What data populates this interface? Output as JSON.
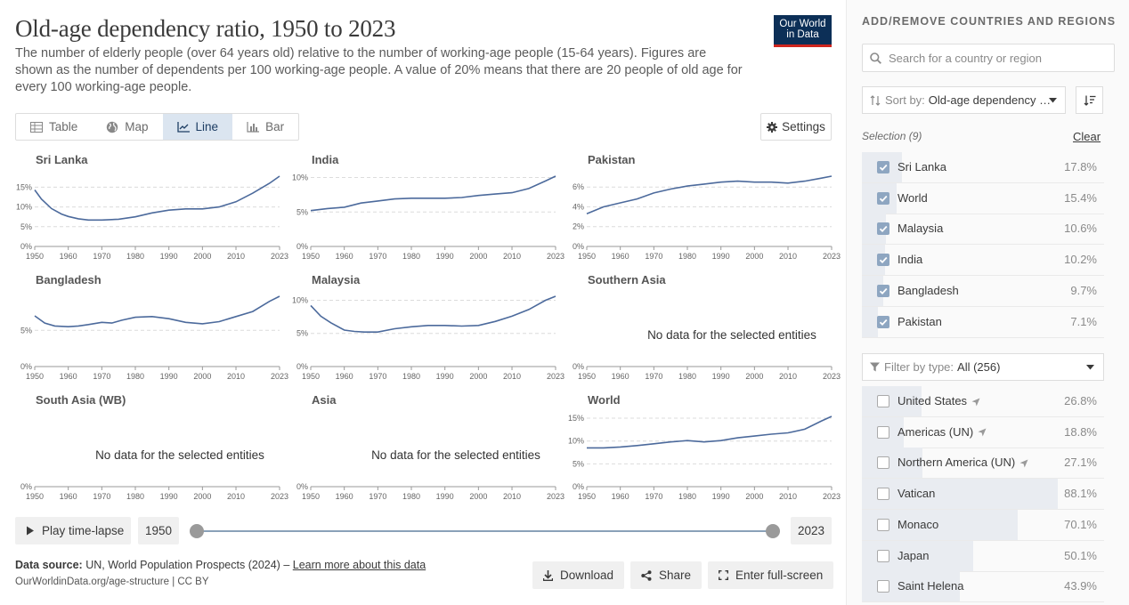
{
  "header": {
    "title": "Old-age dependency ratio, 1950 to 2023",
    "subtitle": "The number of elderly people (over 64 years old) relative to the number of working-age people (15-64 years). Figures are shown as the number of dependents per 100 working-age people. A value of 20% means that there are 20 people of old age for every 100 working-age people.",
    "logo_line1": "Our World",
    "logo_line2": "in Data"
  },
  "tabs": [
    {
      "label": "Table",
      "icon": "table-icon",
      "active": false
    },
    {
      "label": "Map",
      "icon": "globe-icon",
      "active": false
    },
    {
      "label": "Line",
      "icon": "line-chart-icon",
      "active": true
    },
    {
      "label": "Bar",
      "icon": "bar-chart-icon",
      "active": false
    }
  ],
  "settings_label": "Settings",
  "no_data_text": "No data for the selected entities",
  "chart_data": {
    "type": "line",
    "x_ticks": [
      1950,
      1960,
      1970,
      1980,
      1990,
      2000,
      2010,
      2023
    ],
    "xlim": [
      1950,
      2023
    ],
    "grid": true,
    "accent": "#4c6a9c",
    "panels": [
      {
        "name": "Sri Lanka",
        "ylim": [
          0,
          17.8
        ],
        "yticks": [
          0,
          5,
          10,
          15
        ],
        "has_data": true,
        "x": [
          1950,
          1952,
          1955,
          1958,
          1960,
          1963,
          1966,
          1970,
          1975,
          1980,
          1985,
          1990,
          1995,
          2000,
          2005,
          2010,
          2015,
          2020,
          2023
        ],
        "y": [
          14.3,
          12.0,
          9.6,
          8.2,
          7.6,
          7.0,
          6.7,
          6.7,
          6.9,
          7.5,
          8.5,
          9.2,
          9.5,
          9.5,
          10.0,
          11.3,
          13.5,
          16.0,
          17.8
        ]
      },
      {
        "name": "India",
        "ylim": [
          0,
          10.2
        ],
        "yticks": [
          0,
          5,
          10
        ],
        "has_data": true,
        "x": [
          1950,
          1955,
          1960,
          1965,
          1970,
          1975,
          1980,
          1985,
          1990,
          1995,
          2000,
          2005,
          2010,
          2015,
          2020,
          2023
        ],
        "y": [
          5.2,
          5.5,
          5.7,
          6.3,
          6.6,
          6.9,
          7.0,
          7.0,
          7.0,
          7.1,
          7.4,
          7.6,
          7.8,
          8.4,
          9.5,
          10.2
        ]
      },
      {
        "name": "Pakistan",
        "ylim": [
          0,
          7.1
        ],
        "yticks": [
          0,
          2,
          4,
          6
        ],
        "has_data": true,
        "x": [
          1950,
          1955,
          1960,
          1965,
          1970,
          1975,
          1980,
          1985,
          1990,
          1995,
          2000,
          2005,
          2010,
          2015,
          2020,
          2023
        ],
        "y": [
          3.3,
          4.0,
          4.4,
          4.8,
          5.4,
          5.8,
          6.1,
          6.3,
          6.5,
          6.6,
          6.5,
          6.5,
          6.4,
          6.6,
          6.9,
          7.1
        ]
      },
      {
        "name": "Bangladesh",
        "ylim": [
          0,
          9.7
        ],
        "yticks": [
          0,
          5
        ],
        "has_data": true,
        "x": [
          1950,
          1953,
          1956,
          1960,
          1963,
          1966,
          1970,
          1973,
          1976,
          1980,
          1985,
          1990,
          1995,
          2000,
          2005,
          2010,
          2015,
          2020,
          2023
        ],
        "y": [
          7.0,
          6.0,
          5.6,
          5.5,
          5.6,
          5.8,
          6.1,
          6.0,
          6.4,
          6.8,
          6.9,
          6.6,
          6.1,
          5.9,
          6.2,
          6.9,
          7.6,
          9.0,
          9.7
        ]
      },
      {
        "name": "Malaysia",
        "ylim": [
          0,
          10.6
        ],
        "yticks": [
          0,
          5,
          10
        ],
        "has_data": true,
        "x": [
          1950,
          1953,
          1956,
          1960,
          1963,
          1966,
          1970,
          1975,
          1980,
          1985,
          1990,
          1995,
          2000,
          2005,
          2010,
          2015,
          2020,
          2023
        ],
        "y": [
          9.2,
          7.6,
          6.6,
          5.5,
          5.3,
          5.2,
          5.2,
          5.7,
          6.0,
          6.2,
          6.2,
          6.1,
          6.2,
          6.8,
          7.6,
          8.6,
          10.0,
          10.6
        ]
      },
      {
        "name": "Southern Asia",
        "ylim": [
          0,
          1
        ],
        "yticks": [
          0
        ],
        "has_data": false
      },
      {
        "name": "South Asia (WB)",
        "ylim": [
          0,
          1
        ],
        "yticks": [
          0
        ],
        "has_data": false
      },
      {
        "name": "Asia",
        "ylim": [
          0,
          1
        ],
        "yticks": [
          0
        ],
        "has_data": false
      },
      {
        "name": "World",
        "ylim": [
          0,
          15.4
        ],
        "yticks": [
          0,
          5,
          10,
          15
        ],
        "has_data": true,
        "x": [
          1950,
          1955,
          1960,
          1965,
          1970,
          1975,
          1980,
          1985,
          1990,
          1995,
          2000,
          2005,
          2010,
          2015,
          2020,
          2023
        ],
        "y": [
          8.5,
          8.5,
          8.7,
          9.0,
          9.4,
          9.8,
          10.1,
          9.8,
          10.1,
          10.7,
          11.1,
          11.5,
          11.8,
          12.6,
          14.4,
          15.4
        ]
      }
    ]
  },
  "timeline": {
    "play_label": "Play time-lapse",
    "start_year": "1950",
    "end_year": "2023"
  },
  "footer": {
    "source_label": "Data source:",
    "source_text": "UN, World Population Prospects (2024) –",
    "learn_more": "Learn more about this data",
    "url": "OurWorldinData.org/age-structure | CC BY",
    "download": "Download",
    "share": "Share",
    "fullscreen": "Enter full-screen"
  },
  "sidebar": {
    "heading": "ADD/REMOVE COUNTRIES AND REGIONS",
    "search_placeholder": "Search for a country or region",
    "sort_label": "Sort by:",
    "sort_value": "Old-age dependency ratio",
    "selection_label": "Selection (9)",
    "clear_label": "Clear",
    "selected": [
      {
        "name": "Sri Lanka",
        "value": "17.8%",
        "frac": 0.178
      },
      {
        "name": "World",
        "value": "15.4%",
        "frac": 0.154
      },
      {
        "name": "Malaysia",
        "value": "10.6%",
        "frac": 0.106
      },
      {
        "name": "India",
        "value": "10.2%",
        "frac": 0.102
      },
      {
        "name": "Bangladesh",
        "value": "9.7%",
        "frac": 0.097
      },
      {
        "name": "Pakistan",
        "value": "7.1%",
        "frac": 0.071
      }
    ],
    "filter_label": "Filter by type:",
    "filter_value": "All (256)",
    "available": [
      {
        "name": "United States",
        "value": "26.8%",
        "frac": 0.268,
        "located": true
      },
      {
        "name": "Americas (UN)",
        "value": "18.8%",
        "frac": 0.188,
        "located": true
      },
      {
        "name": "Northern America (UN)",
        "value": "27.1%",
        "frac": 0.271,
        "located": true
      },
      {
        "name": "Vatican",
        "value": "88.1%",
        "frac": 0.881,
        "located": false
      },
      {
        "name": "Monaco",
        "value": "70.1%",
        "frac": 0.701,
        "located": false
      },
      {
        "name": "Japan",
        "value": "50.1%",
        "frac": 0.501,
        "located": false
      },
      {
        "name": "Saint Helena",
        "value": "43.9%",
        "frac": 0.439,
        "located": false
      }
    ]
  }
}
